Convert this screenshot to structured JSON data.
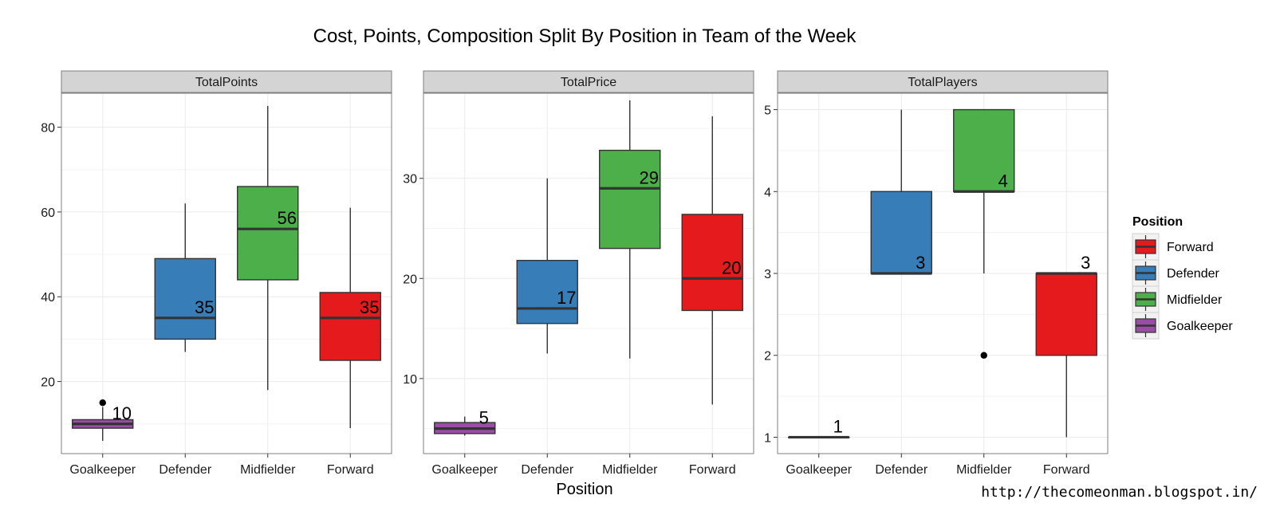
{
  "chart_data": {
    "type": "boxplot",
    "title": "Cost, Points, Composition Split By Position in Team of the Week",
    "xlabel": "Position",
    "categories": [
      "Goalkeeper",
      "Defender",
      "Midfielder",
      "Forward"
    ],
    "colors": {
      "Goalkeeper": "#984ea3",
      "Defender": "#377eb8",
      "Midfielder": "#4daf4a",
      "Forward": "#e41a1c"
    },
    "panels": [
      {
        "name": "TotalPoints",
        "ylim": [
          3,
          88
        ],
        "yticks": [
          20,
          40,
          60,
          80
        ],
        "boxes": [
          {
            "category": "Goalkeeper",
            "lower_whisker": 6,
            "q1": 9,
            "median": 10,
            "q3": 11,
            "upper_whisker": 14,
            "outliers": [
              15
            ],
            "label": "10"
          },
          {
            "category": "Defender",
            "lower_whisker": 27,
            "q1": 30,
            "median": 35,
            "q3": 49,
            "upper_whisker": 62,
            "outliers": [],
            "label": "35"
          },
          {
            "category": "Midfielder",
            "lower_whisker": 18,
            "q1": 44,
            "median": 56,
            "q3": 66,
            "upper_whisker": 85,
            "outliers": [],
            "label": "56"
          },
          {
            "category": "Forward",
            "lower_whisker": 9,
            "q1": 25,
            "median": 35,
            "q3": 41,
            "upper_whisker": 61,
            "outliers": [],
            "label": "35"
          }
        ]
      },
      {
        "name": "TotalPrice",
        "ylim": [
          2.5,
          38.5
        ],
        "yticks": [
          10,
          20,
          30
        ],
        "boxes": [
          {
            "category": "Goalkeeper",
            "lower_whisker": 4.3,
            "q1": 4.5,
            "median": 5,
            "q3": 5.6,
            "upper_whisker": 6.2,
            "outliers": [],
            "label": "5"
          },
          {
            "category": "Defender",
            "lower_whisker": 12.5,
            "q1": 15.5,
            "median": 17,
            "q3": 21.8,
            "upper_whisker": 30,
            "outliers": [],
            "label": "17"
          },
          {
            "category": "Midfielder",
            "lower_whisker": 12,
            "q1": 23,
            "median": 29,
            "q3": 32.8,
            "upper_whisker": 37.8,
            "outliers": [],
            "label": "29"
          },
          {
            "category": "Forward",
            "lower_whisker": 7.4,
            "q1": 16.8,
            "median": 20,
            "q3": 26.4,
            "upper_whisker": 36.2,
            "outliers": [],
            "label": "20"
          }
        ]
      },
      {
        "name": "TotalPlayers",
        "ylim": [
          0.8,
          5.2
        ],
        "yticks": [
          1,
          2,
          3,
          4,
          5
        ],
        "boxes": [
          {
            "category": "Goalkeeper",
            "lower_whisker": 1,
            "q1": 1,
            "median": 1,
            "q3": 1,
            "upper_whisker": 1,
            "outliers": [],
            "label": "1"
          },
          {
            "category": "Defender",
            "lower_whisker": 3,
            "q1": 3,
            "median": 3,
            "q3": 4,
            "upper_whisker": 5,
            "outliers": [],
            "label": "3"
          },
          {
            "category": "Midfielder",
            "lower_whisker": 3,
            "q1": 4,
            "median": 4,
            "q3": 5,
            "upper_whisker": 5,
            "outliers": [
              2
            ],
            "label": "4"
          },
          {
            "category": "Forward",
            "lower_whisker": 1,
            "q1": 2,
            "median": 3,
            "q3": 3,
            "upper_whisker": 3,
            "outliers": [],
            "label": "3"
          }
        ]
      }
    ],
    "grid": true,
    "legend": {
      "title": "Position",
      "position": "right",
      "entries": [
        "Forward",
        "Defender",
        "Midfielder",
        "Goalkeeper"
      ]
    }
  },
  "credit": "http://thecomeonman.blogspot.in/"
}
